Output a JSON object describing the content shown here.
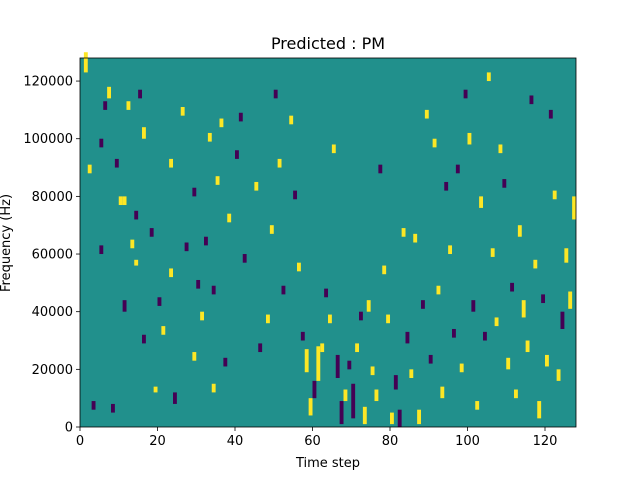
{
  "chart_data": {
    "type": "heatmap",
    "title": "Predicted : PM",
    "xlabel": "Time step",
    "ylabel": "Frequency (Hz)",
    "xlim": [
      0,
      128
    ],
    "ylim": [
      0,
      128000
    ],
    "xticks": [
      0,
      20,
      40,
      60,
      80,
      100,
      120
    ],
    "yticks": [
      0,
      20000,
      40000,
      60000,
      80000,
      100000,
      120000
    ],
    "xtick_labels": [
      "0",
      "20",
      "40",
      "60",
      "80",
      "100",
      "120"
    ],
    "ytick_labels": [
      "0",
      "20000",
      "40000",
      "60000",
      "80000",
      "100000",
      "120000"
    ],
    "grid": false,
    "colormap": "viridis",
    "colors": {
      "background": "#21908c",
      "high": "#fde725",
      "low": "#440154"
    },
    "n_time_steps": 128,
    "n_freq_bins": 128,
    "freq_bin_hz": 1000,
    "cell_value_levels": {
      "low": -1,
      "background": 0,
      "high": 1
    },
    "cells": [
      [
        1,
        123000,
        7000,
        1
      ],
      [
        2,
        88000,
        3000,
        1
      ],
      [
        3,
        6000,
        3000,
        -1
      ],
      [
        5,
        60000,
        3000,
        -1
      ],
      [
        5,
        97000,
        3000,
        -1
      ],
      [
        6,
        110000,
        3000,
        -1
      ],
      [
        7,
        114000,
        4000,
        1
      ],
      [
        8,
        5000,
        3000,
        -1
      ],
      [
        9,
        90000,
        3000,
        -1
      ],
      [
        10,
        77000,
        3000,
        1
      ],
      [
        11,
        40000,
        4000,
        -1
      ],
      [
        11,
        77000,
        3000,
        1
      ],
      [
        12,
        110000,
        3000,
        1
      ],
      [
        13,
        62000,
        3000,
        1
      ],
      [
        14,
        56000,
        2000,
        1
      ],
      [
        14,
        72000,
        3000,
        -1
      ],
      [
        15,
        114000,
        3000,
        -1
      ],
      [
        16,
        100000,
        4000,
        1
      ],
      [
        16,
        29000,
        3000,
        -1
      ],
      [
        18,
        66000,
        3000,
        -1
      ],
      [
        19,
        12000,
        2000,
        1
      ],
      [
        20,
        42000,
        3000,
        -1
      ],
      [
        21,
        32000,
        3000,
        1
      ],
      [
        23,
        90000,
        3000,
        1
      ],
      [
        23,
        52000,
        3000,
        1
      ],
      [
        24,
        8000,
        4000,
        -1
      ],
      [
        26,
        108000,
        3000,
        1
      ],
      [
        27,
        61000,
        3000,
        -1
      ],
      [
        29,
        23000,
        3000,
        1
      ],
      [
        29,
        80000,
        3000,
        -1
      ],
      [
        30,
        48000,
        3000,
        -1
      ],
      [
        31,
        37000,
        3000,
        1
      ],
      [
        32,
        63000,
        3000,
        -1
      ],
      [
        33,
        99000,
        3000,
        1
      ],
      [
        34,
        12000,
        3000,
        1
      ],
      [
        34,
        46000,
        3000,
        -1
      ],
      [
        35,
        84000,
        3000,
        1
      ],
      [
        36,
        104000,
        3000,
        1
      ],
      [
        37,
        21000,
        3000,
        -1
      ],
      [
        38,
        71000,
        3000,
        1
      ],
      [
        40,
        93000,
        3000,
        -1
      ],
      [
        41,
        106000,
        3000,
        -1
      ],
      [
        42,
        57000,
        3000,
        -1
      ],
      [
        45,
        82000,
        3000,
        1
      ],
      [
        46,
        26000,
        3000,
        -1
      ],
      [
        48,
        36000,
        3000,
        1
      ],
      [
        49,
        67000,
        3000,
        1
      ],
      [
        50,
        114000,
        3000,
        -1
      ],
      [
        51,
        90000,
        3000,
        1
      ],
      [
        52,
        46000,
        3000,
        -1
      ],
      [
        54,
        105000,
        3000,
        1
      ],
      [
        55,
        79000,
        3000,
        -1
      ],
      [
        56,
        54000,
        3000,
        1
      ],
      [
        57,
        30000,
        3000,
        -1
      ],
      [
        58,
        19000,
        8000,
        1
      ],
      [
        59,
        4000,
        6000,
        1
      ],
      [
        60,
        10000,
        6000,
        -1
      ],
      [
        61,
        16000,
        12000,
        1
      ],
      [
        62,
        26000,
        3000,
        1
      ],
      [
        63,
        45000,
        3000,
        -1
      ],
      [
        64,
        36000,
        3000,
        1
      ],
      [
        65,
        95000,
        3000,
        1
      ],
      [
        66,
        17000,
        8000,
        -1
      ],
      [
        67,
        1000,
        8000,
        -1
      ],
      [
        68,
        9000,
        4000,
        1
      ],
      [
        69,
        20000,
        3000,
        -1
      ],
      [
        70,
        3000,
        12000,
        -1
      ],
      [
        71,
        26000,
        3000,
        1
      ],
      [
        72,
        37000,
        3000,
        -1
      ],
      [
        73,
        1000,
        6000,
        1
      ],
      [
        74,
        40000,
        4000,
        1
      ],
      [
        75,
        18000,
        3000,
        1
      ],
      [
        76,
        9000,
        4000,
        1
      ],
      [
        77,
        88000,
        3000,
        -1
      ],
      [
        78,
        53000,
        3000,
        1
      ],
      [
        79,
        36000,
        3000,
        1
      ],
      [
        80,
        1000,
        4000,
        1
      ],
      [
        81,
        13000,
        5000,
        -1
      ],
      [
        82,
        0,
        6000,
        -1
      ],
      [
        83,
        66000,
        3000,
        1
      ],
      [
        84,
        29000,
        4000,
        -1
      ],
      [
        85,
        17000,
        3000,
        1
      ],
      [
        86,
        64000,
        3000,
        1
      ],
      [
        87,
        1000,
        5000,
        1
      ],
      [
        88,
        41000,
        3000,
        -1
      ],
      [
        89,
        107000,
        3000,
        1
      ],
      [
        90,
        22000,
        3000,
        -1
      ],
      [
        91,
        97000,
        3000,
        1
      ],
      [
        92,
        46000,
        3000,
        1
      ],
      [
        93,
        10000,
        4000,
        1
      ],
      [
        94,
        82000,
        3000,
        -1
      ],
      [
        95,
        60000,
        3000,
        1
      ],
      [
        96,
        31000,
        3000,
        -1
      ],
      [
        97,
        88000,
        3000,
        -1
      ],
      [
        98,
        19000,
        3000,
        1
      ],
      [
        99,
        114000,
        3000,
        -1
      ],
      [
        100,
        98000,
        4000,
        1
      ],
      [
        101,
        40000,
        4000,
        -1
      ],
      [
        102,
        6000,
        3000,
        1
      ],
      [
        103,
        76000,
        4000,
        1
      ],
      [
        104,
        30000,
        3000,
        -1
      ],
      [
        105,
        120000,
        3000,
        1
      ],
      [
        106,
        59000,
        3000,
        1
      ],
      [
        107,
        35000,
        3000,
        1
      ],
      [
        108,
        95000,
        3000,
        1
      ],
      [
        109,
        83000,
        3000,
        -1
      ],
      [
        110,
        20000,
        4000,
        1
      ],
      [
        111,
        47000,
        3000,
        -1
      ],
      [
        112,
        10000,
        3000,
        1
      ],
      [
        113,
        66000,
        4000,
        1
      ],
      [
        114,
        38000,
        6000,
        1
      ],
      [
        115,
        26000,
        4000,
        1
      ],
      [
        116,
        112000,
        3000,
        -1
      ],
      [
        117,
        55000,
        3000,
        1
      ],
      [
        118,
        3000,
        6000,
        1
      ],
      [
        119,
        43000,
        3000,
        -1
      ],
      [
        120,
        21000,
        4000,
        1
      ],
      [
        121,
        107000,
        3000,
        -1
      ],
      [
        122,
        79000,
        3000,
        1
      ],
      [
        123,
        16000,
        4000,
        1
      ],
      [
        124,
        34000,
        6000,
        -1
      ],
      [
        125,
        57000,
        5000,
        1
      ],
      [
        126,
        41000,
        6000,
        1
      ],
      [
        127,
        72000,
        8000,
        1
      ]
    ]
  }
}
